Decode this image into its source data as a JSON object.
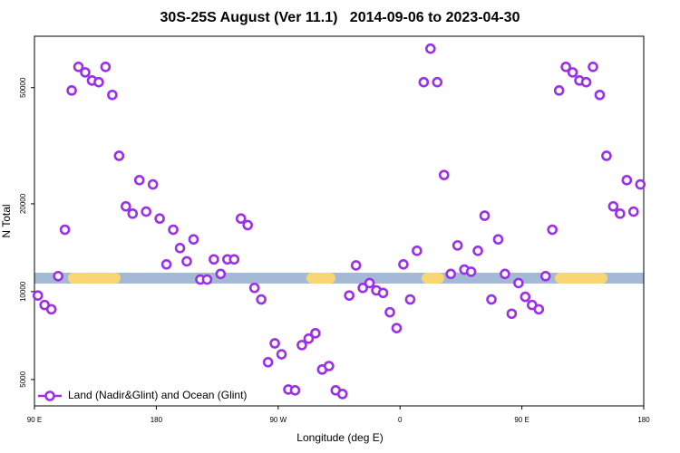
{
  "chart_data": {
    "type": "scatter",
    "title": "30S-25S August (Ver 11.1)   2014-09-06 to 2023-04-30",
    "x_label": "Longitude (deg E)",
    "y_label": "N Total",
    "log_y": true,
    "legend": "lower left",
    "xlim": [
      90,
      540
    ],
    "ylim": [
      4060,
      75000
    ],
    "xticks": [
      {
        "value": 90,
        "label": "90 E"
      },
      180,
      {
        "value": 270,
        "label": "90 W"
      },
      {
        "value": 360,
        "label": "0"
      },
      {
        "value": 450,
        "label": "90 E"
      },
      180
    ],
    "yticks": [
      5000,
      10000,
      20000,
      50000
    ],
    "x": [
      92.5,
      97.5,
      102.5,
      107.5,
      112.5,
      117.5,
      122.5,
      127.5,
      132.5,
      137.5,
      142.5,
      147.5,
      152.5,
      157.5,
      162.5,
      167.5,
      172.5,
      177.5,
      182.5,
      187.5,
      192.5,
      197.5,
      202.5,
      207.5,
      212.5,
      217.5,
      222.5,
      227.5,
      232.5,
      237.5,
      242.5,
      247.5,
      252.5,
      257.5,
      262.5,
      267.5,
      272.5,
      277.5,
      282.5,
      287.5,
      292.5,
      297.5,
      302.5,
      307.5,
      312.5,
      317.5,
      322.5,
      327.5,
      332.5,
      337.5,
      342.5,
      347.5,
      352.5,
      357.5,
      362.5,
      367.5,
      372.5,
      377.5,
      382.5,
      387.5,
      392.5,
      397.5,
      402.5,
      407.5,
      412.5,
      417.5,
      422.5,
      427.5,
      432.5,
      437.5,
      442.5,
      447.5,
      452.5,
      457.5,
      462.5,
      467.5,
      472.5,
      477.5,
      482.5,
      487.5,
      492.5,
      497.5,
      502.5,
      507.5,
      512.5,
      517.5,
      522.5,
      527.5,
      532.5,
      537.5
    ],
    "series": [
      {
        "name": "Land (Nadir&Glint) and Ocean (Glint)",
        "color": "#9b30e6",
        "values": [
          9700,
          9000,
          8700,
          11300,
          16300,
          48900,
          58900,
          56400,
          52900,
          52200,
          58900,
          47200,
          29200,
          19600,
          18500,
          24100,
          18800,
          23300,
          17800,
          12400,
          16300,
          14100,
          12700,
          15100,
          11000,
          11000,
          12900,
          11500,
          12900,
          12900,
          17800,
          16900,
          10300,
          9400,
          5730,
          6650,
          6100,
          4620,
          4590,
          6560,
          6900,
          7200,
          5410,
          5560,
          4590,
          4460,
          9700,
          12300,
          10300,
          10700,
          10100,
          9900,
          8500,
          7500,
          12400,
          9400,
          13800,
          52200,
          68000,
          52200,
          25100,
          11500,
          14400,
          11900,
          11700,
          13800,
          18200,
          9400,
          15100,
          11500,
          8400,
          10700,
          9600,
          9000,
          8700,
          11300,
          16300,
          48900,
          58900,
          56400,
          52900,
          52200,
          58900,
          47200,
          29200,
          19600,
          18500,
          24100,
          18800,
          23300
        ]
      }
    ]
  }
}
